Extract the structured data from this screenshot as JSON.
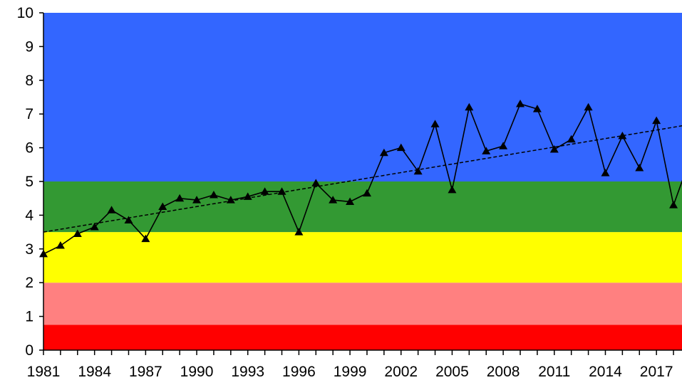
{
  "chart_data": {
    "type": "line",
    "title": "",
    "xlabel": "",
    "ylabel": "",
    "xlim": [
      1981,
      2018.5
    ],
    "ylim": [
      0,
      10
    ],
    "y_ticks": [
      "0",
      "1",
      "2",
      "3",
      "4",
      "5",
      "6",
      "7",
      "8",
      "9",
      "10"
    ],
    "x_tick_labels": [
      "1981",
      "1984",
      "1987",
      "1990",
      "1993",
      "1996",
      "1999",
      "2002",
      "2005",
      "2008",
      "2011",
      "2014",
      "2017"
    ],
    "grid": false,
    "legend": "none",
    "background_bands": [
      {
        "from": 0,
        "to": 0.75,
        "color": "#ff0000"
      },
      {
        "from": 0.75,
        "to": 2,
        "color": "#ff8080"
      },
      {
        "from": 2,
        "to": 3.5,
        "color": "#ffff00"
      },
      {
        "from": 3.5,
        "to": 5,
        "color": "#339933"
      },
      {
        "from": 5,
        "to": 10,
        "color": "#3366ff"
      }
    ],
    "series": [
      {
        "marker": "triangle",
        "color": "#000000",
        "x": [
          1981,
          1982,
          1983,
          1984,
          1985,
          1986,
          1987,
          1988,
          1989,
          1990,
          1991,
          1992,
          1993,
          1994,
          1995,
          1996,
          1997,
          1998,
          1999,
          2000,
          2001,
          2002,
          2003,
          2004,
          2005,
          2006,
          2007,
          2008,
          2009,
          2010,
          2011,
          2012,
          2013,
          2014,
          2015,
          2016,
          2017,
          2018,
          2019
        ],
        "values": [
          2.85,
          3.1,
          3.45,
          3.65,
          4.15,
          3.85,
          3.3,
          4.25,
          4.5,
          4.45,
          4.6,
          4.45,
          4.55,
          4.7,
          4.7,
          3.5,
          4.95,
          4.45,
          4.4,
          4.65,
          5.85,
          6.0,
          5.3,
          6.7,
          4.75,
          7.2,
          5.9,
          6.05,
          7.3,
          7.15,
          5.95,
          6.25,
          7.2,
          5.25,
          6.35,
          5.4,
          6.8,
          4.3,
          5.7
        ]
      }
    ],
    "trendline": {
      "style": "dashed",
      "color": "#000000",
      "x": [
        1981,
        2018.5
      ],
      "values": [
        3.5,
        6.65
      ]
    }
  }
}
